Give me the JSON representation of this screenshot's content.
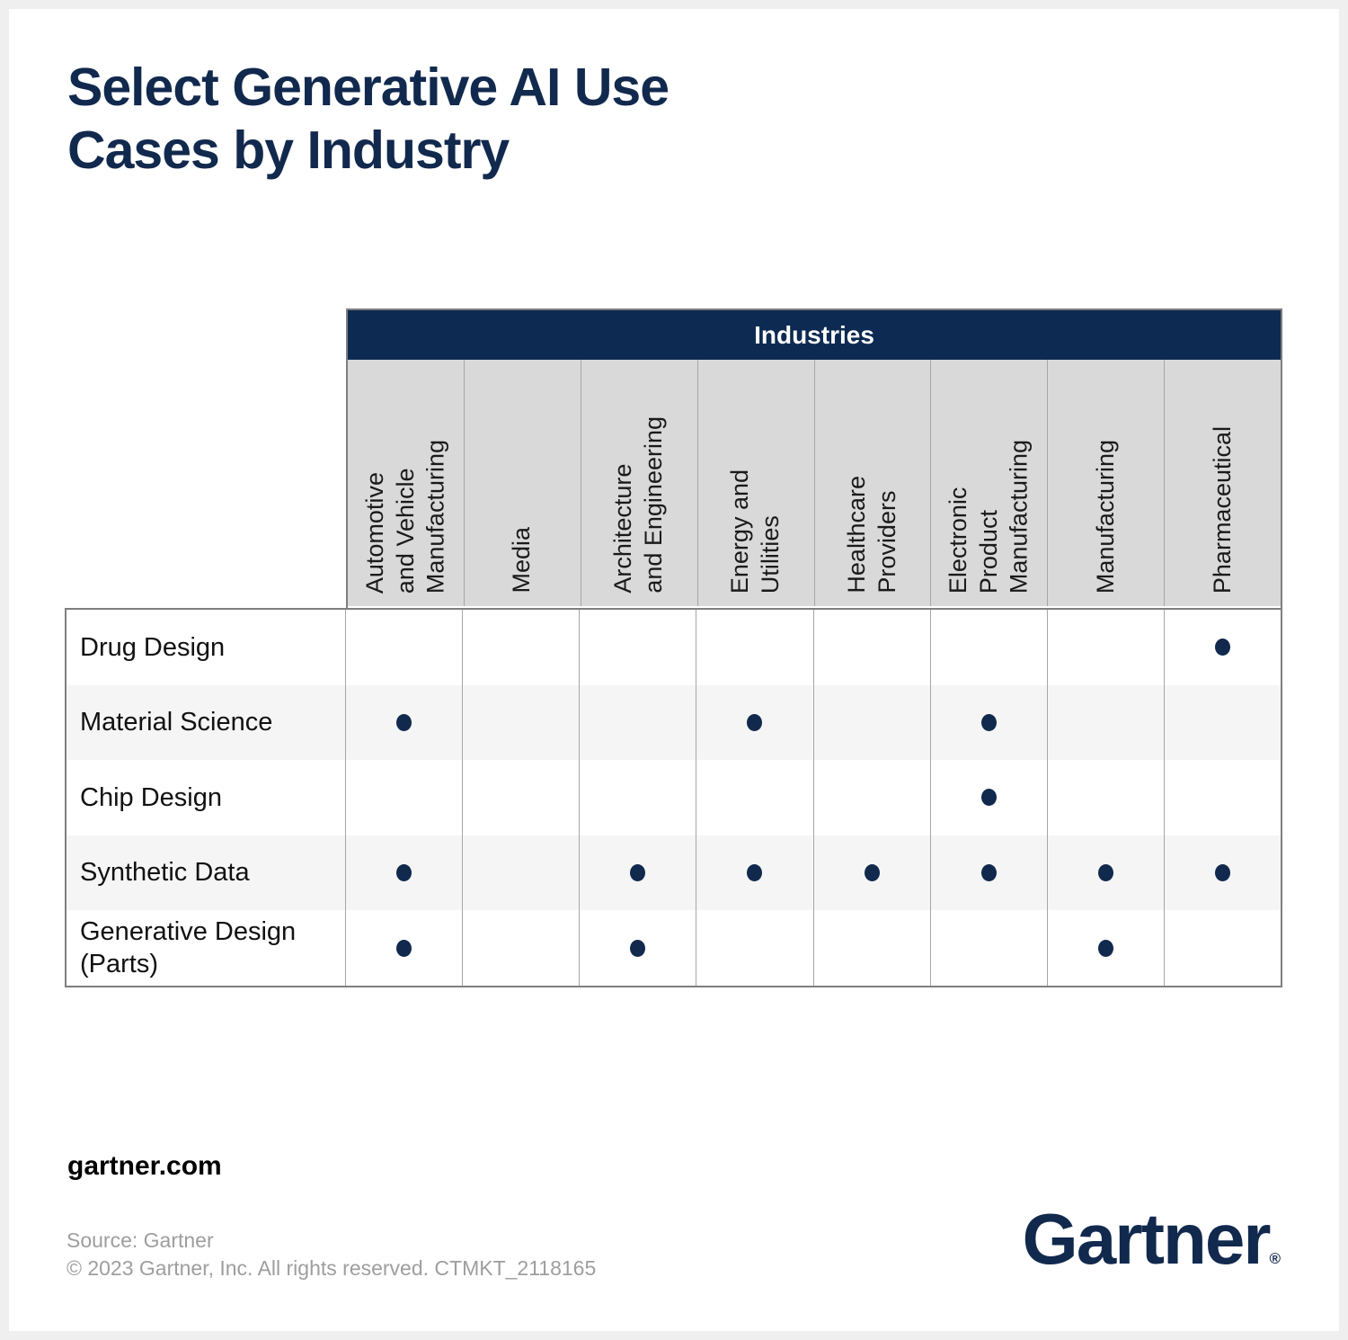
{
  "title": "Select Generative AI Use\nCases by Industry",
  "table": {
    "header": "Industries",
    "industries": [
      "Automotive\nand Vehicle\nManufacturing",
      "Media",
      "Architecture\nand Engineering",
      "Energy and\nUtilities",
      "Healthcare\nProviders",
      "Electronic\nProduct\nManufacturing",
      "Manufacturing",
      "Pharmaceutical"
    ],
    "use_cases": [
      {
        "label": "Drug Design",
        "marks": [
          0,
          0,
          0,
          0,
          0,
          0,
          0,
          1
        ]
      },
      {
        "label": "Material Science",
        "marks": [
          1,
          0,
          0,
          1,
          0,
          1,
          0,
          0
        ]
      },
      {
        "label": "Chip Design",
        "marks": [
          0,
          0,
          0,
          0,
          0,
          1,
          0,
          0
        ]
      },
      {
        "label": "Synthetic Data",
        "marks": [
          1,
          0,
          1,
          1,
          1,
          1,
          1,
          1
        ]
      },
      {
        "label": "Generative Design\n(Parts)",
        "marks": [
          1,
          0,
          1,
          0,
          0,
          0,
          1,
          0
        ]
      }
    ]
  },
  "chart_data": {
    "type": "table",
    "title": "Select Generative AI Use Cases by Industry",
    "columns": [
      "Automotive and Vehicle Manufacturing",
      "Media",
      "Architecture and Engineering",
      "Energy and Utilities",
      "Healthcare Providers",
      "Electronic Product Manufacturing",
      "Manufacturing",
      "Pharmaceutical"
    ],
    "rows": [
      "Drug Design",
      "Material Science",
      "Chip Design",
      "Synthetic Data",
      "Generative Design (Parts)"
    ],
    "matrix": [
      [
        0,
        0,
        0,
        0,
        0,
        0,
        0,
        1
      ],
      [
        1,
        0,
        0,
        1,
        0,
        1,
        0,
        0
      ],
      [
        0,
        0,
        0,
        0,
        0,
        1,
        0,
        0
      ],
      [
        1,
        0,
        1,
        1,
        1,
        1,
        1,
        1
      ],
      [
        1,
        0,
        1,
        0,
        0,
        0,
        1,
        0
      ]
    ]
  },
  "footer": {
    "website": "gartner.com",
    "source": "Source: Gartner",
    "copyright": "© 2023 Gartner, Inc. All rights reserved. CTMKT_2118165",
    "logo_text": "Gartner",
    "logo_reg": "®"
  },
  "colors": {
    "navy": "#12294e",
    "industries_bar": "#0d2a52",
    "header_band_gray": "#d9d9d9",
    "row_alt_gray": "#f5f5f5",
    "table_border": "#7f7f7f",
    "muted_text": "#9e9e9e"
  }
}
